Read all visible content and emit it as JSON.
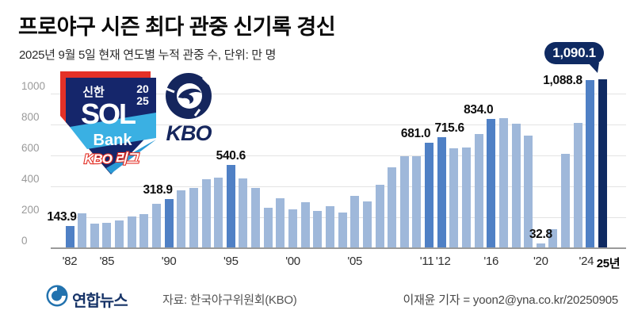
{
  "header": {
    "title": "프로야구 시즌 최다 관중 신기록 경신",
    "subtitle": "2025년 9월 5일 현재 연도별 누적 관중 수, 단위: 만 명"
  },
  "chart_data": {
    "type": "bar",
    "title": "프로야구 시즌 최다 관중 신기록 경신",
    "ylabel": "누적 관중 수(만 명)",
    "xlabel": "연도",
    "ylim": [
      0,
      1000
    ],
    "yticks": [
      0,
      200,
      400,
      600,
      800,
      1000
    ],
    "grid": true,
    "x": [
      1982,
      1983,
      1984,
      1985,
      1986,
      1987,
      1988,
      1989,
      1990,
      1991,
      1992,
      1993,
      1994,
      1995,
      1996,
      1997,
      1998,
      1999,
      2000,
      2001,
      2002,
      2003,
      2004,
      2005,
      2006,
      2007,
      2008,
      2009,
      2010,
      2011,
      2012,
      2013,
      2014,
      2015,
      2016,
      2017,
      2018,
      2019,
      2020,
      2021,
      2022,
      2023,
      2024,
      2025
    ],
    "values": [
      143.9,
      225.6,
      158.8,
      163.8,
      181.0,
      206.2,
      219.3,
      288.2,
      318.9,
      373.5,
      387.3,
      443.7,
      456.1,
      540.6,
      449.6,
      390.6,
      263.9,
      322.1,
      250.7,
      299.1,
      239.4,
      272.2,
      233.2,
      338.7,
      304.0,
      410.4,
      525.6,
      592.5,
      592.8,
      681.0,
      715.6,
      644.1,
      650.9,
      736.0,
      834.0,
      840.1,
      807.3,
      728.6,
      32.8,
      122.8,
      607.7,
      810.9,
      1088.8,
      1090.1
    ],
    "xticks": [
      {
        "year": 1982,
        "label": "'82",
        "bold": false
      },
      {
        "year": 1985,
        "label": "'85",
        "bold": false
      },
      {
        "year": 1990,
        "label": "'90",
        "bold": false
      },
      {
        "year": 1995,
        "label": "'95",
        "bold": false
      },
      {
        "year": 2000,
        "label": "'00",
        "bold": false
      },
      {
        "year": 2005,
        "label": "'05",
        "bold": false
      },
      {
        "year": 2011,
        "label": "'11",
        "bold": false
      },
      {
        "year": 2012,
        "label": "'12",
        "bold": false
      },
      {
        "year": 2016,
        "label": "'16",
        "bold": false
      },
      {
        "year": 2020,
        "label": "'20",
        "bold": false
      },
      {
        "year": 2024,
        "label": "'24",
        "bold": false
      },
      {
        "year": 2025,
        "label": "25년",
        "bold": true
      }
    ],
    "highlight_years": [
      1982,
      1990,
      1995,
      2011,
      2012,
      2016,
      2024
    ],
    "final_year": 2025,
    "value_labels": [
      {
        "year": 1982,
        "text": "143.9"
      },
      {
        "year": 1990,
        "text": "318.9"
      },
      {
        "year": 1995,
        "text": "540.6"
      },
      {
        "year": 2011,
        "text": "681.0"
      },
      {
        "year": 2012,
        "text": "715.6"
      },
      {
        "year": 2016,
        "text": "834.0"
      },
      {
        "year": 2020,
        "text": "32.8"
      },
      {
        "year": 2024,
        "text": "1,088.8"
      }
    ],
    "callout": {
      "year": 2025,
      "text": "1,090.1"
    },
    "colors": {
      "bar_light": "#9fb8da",
      "bar_highlight": "#4f80c5",
      "bar_final": "#0f2a62",
      "grid": "#e3e3e3",
      "axis": "#9b9b9b"
    }
  },
  "logos": {
    "shinhan": {
      "top_text": "신한",
      "sol": "SOL",
      "bank": "Bank",
      "league": "KBO 리그",
      "year_top": "20",
      "year_bottom": "25"
    },
    "kbo": {
      "wordmark": "KBO"
    }
  },
  "footer": {
    "brand": "연합뉴스",
    "source": "자료: 한국야구위원회(KBO)",
    "byline": "이재윤 기자 = yoon2@yna.co.kr/20250905"
  }
}
